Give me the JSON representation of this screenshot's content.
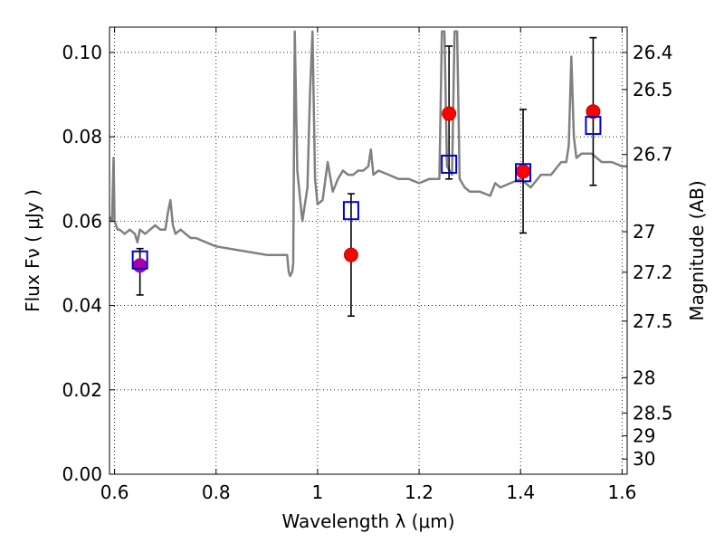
{
  "chart_data": {
    "type": "scatter",
    "xlabel": "Wavelength  λ (μm)",
    "ylabel": "Flux  Fν  ( μJy )",
    "y2label": "Magnitude (AB)",
    "xlim": [
      0.59,
      1.61
    ],
    "ylim": [
      0.0,
      0.106
    ],
    "grid": true,
    "x_ticks": [
      0.6,
      0.8,
      1.0,
      1.2,
      1.4,
      1.6
    ],
    "x_tick_labels": [
      "0.6",
      "0.8",
      "1",
      "1.2",
      "1.4",
      "1.6"
    ],
    "y_ticks": [
      0.0,
      0.02,
      0.04,
      0.06,
      0.08,
      0.1
    ],
    "y_tick_labels": [
      "0.00",
      "0.02",
      "0.04",
      "0.06",
      "0.08",
      "0.10"
    ],
    "y2_ticks": [
      {
        "label": "26.4",
        "flux": 0.1
      },
      {
        "label": "26.5",
        "flux": 0.0912
      },
      {
        "label": "26.7",
        "flux": 0.0758
      },
      {
        "label": "27",
        "flux": 0.0575
      },
      {
        "label": "27.2",
        "flux": 0.0479
      },
      {
        "label": "27.5",
        "flux": 0.0363
      },
      {
        "label": "28",
        "flux": 0.0229
      },
      {
        "label": "28.5",
        "flux": 0.0145
      },
      {
        "label": "29",
        "flux": 0.0091
      },
      {
        "label": "30",
        "flux": 0.0036
      }
    ],
    "colors": {
      "model": "#808080",
      "observed": "#ff0000",
      "observed_edge": "#cc0000",
      "model_box": "#0000cc",
      "special": "#aa00aa",
      "errorbar": "#000000"
    },
    "series": [
      {
        "type": "line",
        "x": [
          0.59,
          0.595,
          0.598,
          0.6,
          0.603,
          0.606,
          0.61,
          0.62,
          0.63,
          0.64,
          0.645,
          0.65,
          0.66,
          0.67,
          0.68,
          0.69,
          0.7,
          0.705,
          0.71,
          0.715,
          0.72,
          0.73,
          0.74,
          0.75,
          0.76,
          0.78,
          0.8,
          0.85,
          0.9,
          0.92,
          0.94,
          0.943,
          0.946,
          0.95,
          0.952,
          0.955,
          0.96,
          0.97,
          0.98,
          0.985,
          0.99,
          0.995,
          1.0,
          1.01,
          1.02,
          1.03,
          1.04,
          1.05,
          1.06,
          1.07,
          1.08,
          1.09,
          1.1,
          1.105,
          1.11,
          1.12,
          1.14,
          1.16,
          1.18,
          1.2,
          1.22,
          1.24,
          1.245,
          1.25,
          1.255,
          1.26,
          1.265,
          1.27,
          1.275,
          1.28,
          1.29,
          1.3,
          1.32,
          1.34,
          1.35,
          1.36,
          1.38,
          1.4,
          1.42,
          1.44,
          1.46,
          1.48,
          1.49,
          1.495,
          1.5,
          1.505,
          1.51,
          1.52,
          1.54,
          1.56,
          1.58,
          1.6,
          1.61
        ],
        "y": [
          0.061,
          0.06,
          0.075,
          0.06,
          0.059,
          0.058,
          0.058,
          0.057,
          0.058,
          0.057,
          0.055,
          0.058,
          0.057,
          0.058,
          0.059,
          0.058,
          0.058,
          0.062,
          0.065,
          0.059,
          0.057,
          0.058,
          0.057,
          0.056,
          0.056,
          0.055,
          0.054,
          0.053,
          0.052,
          0.052,
          0.052,
          0.048,
          0.047,
          0.048,
          0.05,
          0.105,
          0.072,
          0.06,
          0.068,
          0.09,
          0.105,
          0.07,
          0.064,
          0.065,
          0.074,
          0.067,
          0.07,
          0.072,
          0.071,
          0.071,
          0.072,
          0.072,
          0.073,
          0.077,
          0.071,
          0.072,
          0.071,
          0.07,
          0.07,
          0.069,
          0.07,
          0.07,
          0.105,
          0.105,
          0.073,
          0.072,
          0.071,
          0.105,
          0.105,
          0.07,
          0.068,
          0.067,
          0.067,
          0.066,
          0.069,
          0.068,
          0.069,
          0.07,
          0.068,
          0.071,
          0.071,
          0.074,
          0.074,
          0.078,
          0.099,
          0.08,
          0.075,
          0.076,
          0.076,
          0.074,
          0.074,
          0.073,
          0.073
        ],
        "name": ""
      },
      {
        "type": "observed",
        "x": [
          1.066,
          1.259,
          1.405,
          1.543
        ],
        "y": [
          0.052,
          0.0855,
          0.0718,
          0.086
        ],
        "yerr_low": [
          0.0375,
          0.07,
          0.0572,
          0.0685
        ],
        "yerr_high": [
          0.0665,
          0.1015,
          0.0865,
          0.1035
        ],
        "name": ""
      },
      {
        "type": "special",
        "x": [
          0.65
        ],
        "y": [
          0.0495
        ],
        "yerr_low": [
          0.0425
        ],
        "yerr_high": [
          0.0535
        ],
        "name": ""
      },
      {
        "type": "model_box",
        "x": [
          0.65,
          1.066,
          1.259,
          1.405,
          1.543
        ],
        "y": [
          0.0508,
          0.0625,
          0.0735,
          0.0715,
          0.0827
        ],
        "name": ""
      }
    ]
  }
}
